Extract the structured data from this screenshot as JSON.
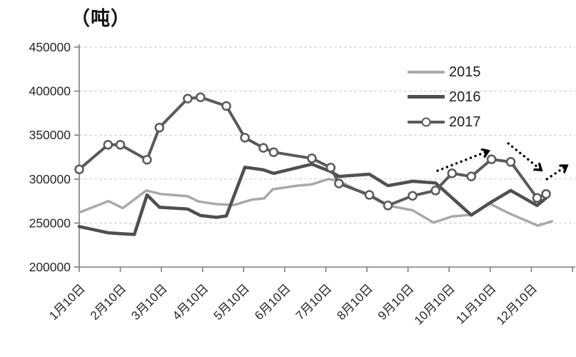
{
  "title_unit": "（吨）",
  "legend": {
    "items": [
      {
        "label": "2015",
        "color": "#a9a9a9",
        "marker": "none"
      },
      {
        "label": "2016",
        "color": "#4f4f4f",
        "marker": "none"
      },
      {
        "label": "2017",
        "color": "#5a5a5a",
        "marker": "circle"
      }
    ]
  },
  "chart_data": {
    "type": "line",
    "title": "（吨）",
    "ylabel": "吨",
    "xlabel": "",
    "ylim": [
      200000,
      450000
    ],
    "yticks": [
      200000,
      250000,
      300000,
      350000,
      400000,
      450000
    ],
    "ytick_labels": [
      "200000",
      "250000",
      "300000",
      "350000",
      "400000",
      "450000"
    ],
    "x_categories": [
      "1月10日",
      "2月10日",
      "3月10日",
      "4月10日",
      "5月10日",
      "6月10日",
      "7月10日",
      "8月10日",
      "9月10日",
      "10月10日",
      "11月10日",
      "12月10日"
    ],
    "x_unit_note": "x = months after 1月10日 (0..12), series sampled roughly semi-monthly",
    "grid": "horizontal dashed",
    "legend_position": "inside upper right",
    "style": {
      "background": "#ffffff",
      "axis_color": "#7f7f7f",
      "grid_color": "#c9c9c9",
      "label_color": "#262626",
      "arrow_color": "#000000"
    },
    "series": [
      {
        "name": "2015",
        "color": "#a9a9a9",
        "stroke_width": 3.5,
        "marker": "none",
        "points": [
          [
            0,
            262000
          ],
          [
            0.71,
            275000
          ],
          [
            1.06,
            267000
          ],
          [
            1.63,
            287000
          ],
          [
            1.98,
            283000
          ],
          [
            2.64,
            280500
          ],
          [
            2.9,
            274500
          ],
          [
            3.34,
            271500
          ],
          [
            3.77,
            270500
          ],
          [
            4.19,
            276500
          ],
          [
            4.5,
            278000
          ],
          [
            4.71,
            288500
          ],
          [
            5.32,
            292500
          ],
          [
            5.66,
            294000
          ],
          [
            6.06,
            300000
          ],
          [
            6.32,
            298000
          ],
          [
            6.71,
            288500
          ],
          [
            7.06,
            280500
          ],
          [
            7.51,
            270000
          ],
          [
            8.11,
            264500
          ],
          [
            8.62,
            250500
          ],
          [
            9.07,
            257500
          ],
          [
            9.54,
            259500
          ],
          [
            9.97,
            272500
          ],
          [
            10.46,
            261000
          ],
          [
            10.81,
            254000
          ],
          [
            11.16,
            247000
          ],
          [
            11.5,
            252000
          ]
        ]
      },
      {
        "name": "2016",
        "color": "#4f4f4f",
        "stroke_width": 4.5,
        "marker": "none",
        "points": [
          [
            0,
            246000
          ],
          [
            0.7,
            239000
          ],
          [
            1.0,
            238000
          ],
          [
            1.34,
            237000
          ],
          [
            1.65,
            282000
          ],
          [
            1.95,
            268000
          ],
          [
            2.64,
            266000
          ],
          [
            2.95,
            258500
          ],
          [
            3.34,
            256500
          ],
          [
            3.58,
            258000
          ],
          [
            4.03,
            313500
          ],
          [
            4.48,
            310500
          ],
          [
            4.73,
            306500
          ],
          [
            5.66,
            317000
          ],
          [
            6.12,
            308500
          ],
          [
            6.32,
            303000
          ],
          [
            7.06,
            305500
          ],
          [
            7.51,
            292500
          ],
          [
            8.11,
            297500
          ],
          [
            8.67,
            295500
          ],
          [
            9.54,
            259000
          ],
          [
            10.03,
            274000
          ],
          [
            10.5,
            287000
          ],
          [
            11.14,
            270000
          ],
          [
            11.36,
            278500
          ]
        ]
      },
      {
        "name": "2017",
        "color": "#5a5a5a",
        "stroke_width": 4,
        "marker": "circle",
        "marker_fill": "#ffffff",
        "marker_radius": 5.5,
        "points": [
          [
            0,
            311000
          ],
          [
            0.7,
            339000
          ],
          [
            1.0,
            339000
          ],
          [
            1.65,
            322000
          ],
          [
            1.95,
            358500
          ],
          [
            2.64,
            391500
          ],
          [
            2.95,
            393000
          ],
          [
            3.58,
            383000
          ],
          [
            4.03,
            347000
          ],
          [
            4.48,
            335500
          ],
          [
            4.73,
            330500
          ],
          [
            5.66,
            323500
          ],
          [
            6.12,
            313000
          ],
          [
            6.32,
            295000
          ],
          [
            7.06,
            282000
          ],
          [
            7.51,
            270000
          ],
          [
            8.11,
            281000
          ],
          [
            8.67,
            287000
          ],
          [
            9.07,
            306500
          ],
          [
            9.54,
            303000
          ],
          [
            10.03,
            322500
          ],
          [
            10.5,
            319500
          ],
          [
            11.14,
            278500
          ],
          [
            11.36,
            283000
          ]
        ]
      }
    ],
    "annotations": {
      "arrows": [
        {
          "from": [
            8.72,
            309500
          ],
          "to": [
            9.93,
            331500
          ],
          "style": "dotted",
          "direction": "up"
        },
        {
          "from": [
            10.44,
            340500
          ],
          "to": [
            11.22,
            311000
          ],
          "style": "dotted",
          "direction": "down"
        },
        {
          "from": [
            11.38,
            300000
          ],
          "to": [
            11.84,
            314500
          ],
          "style": "dotted",
          "direction": "up"
        }
      ]
    }
  }
}
